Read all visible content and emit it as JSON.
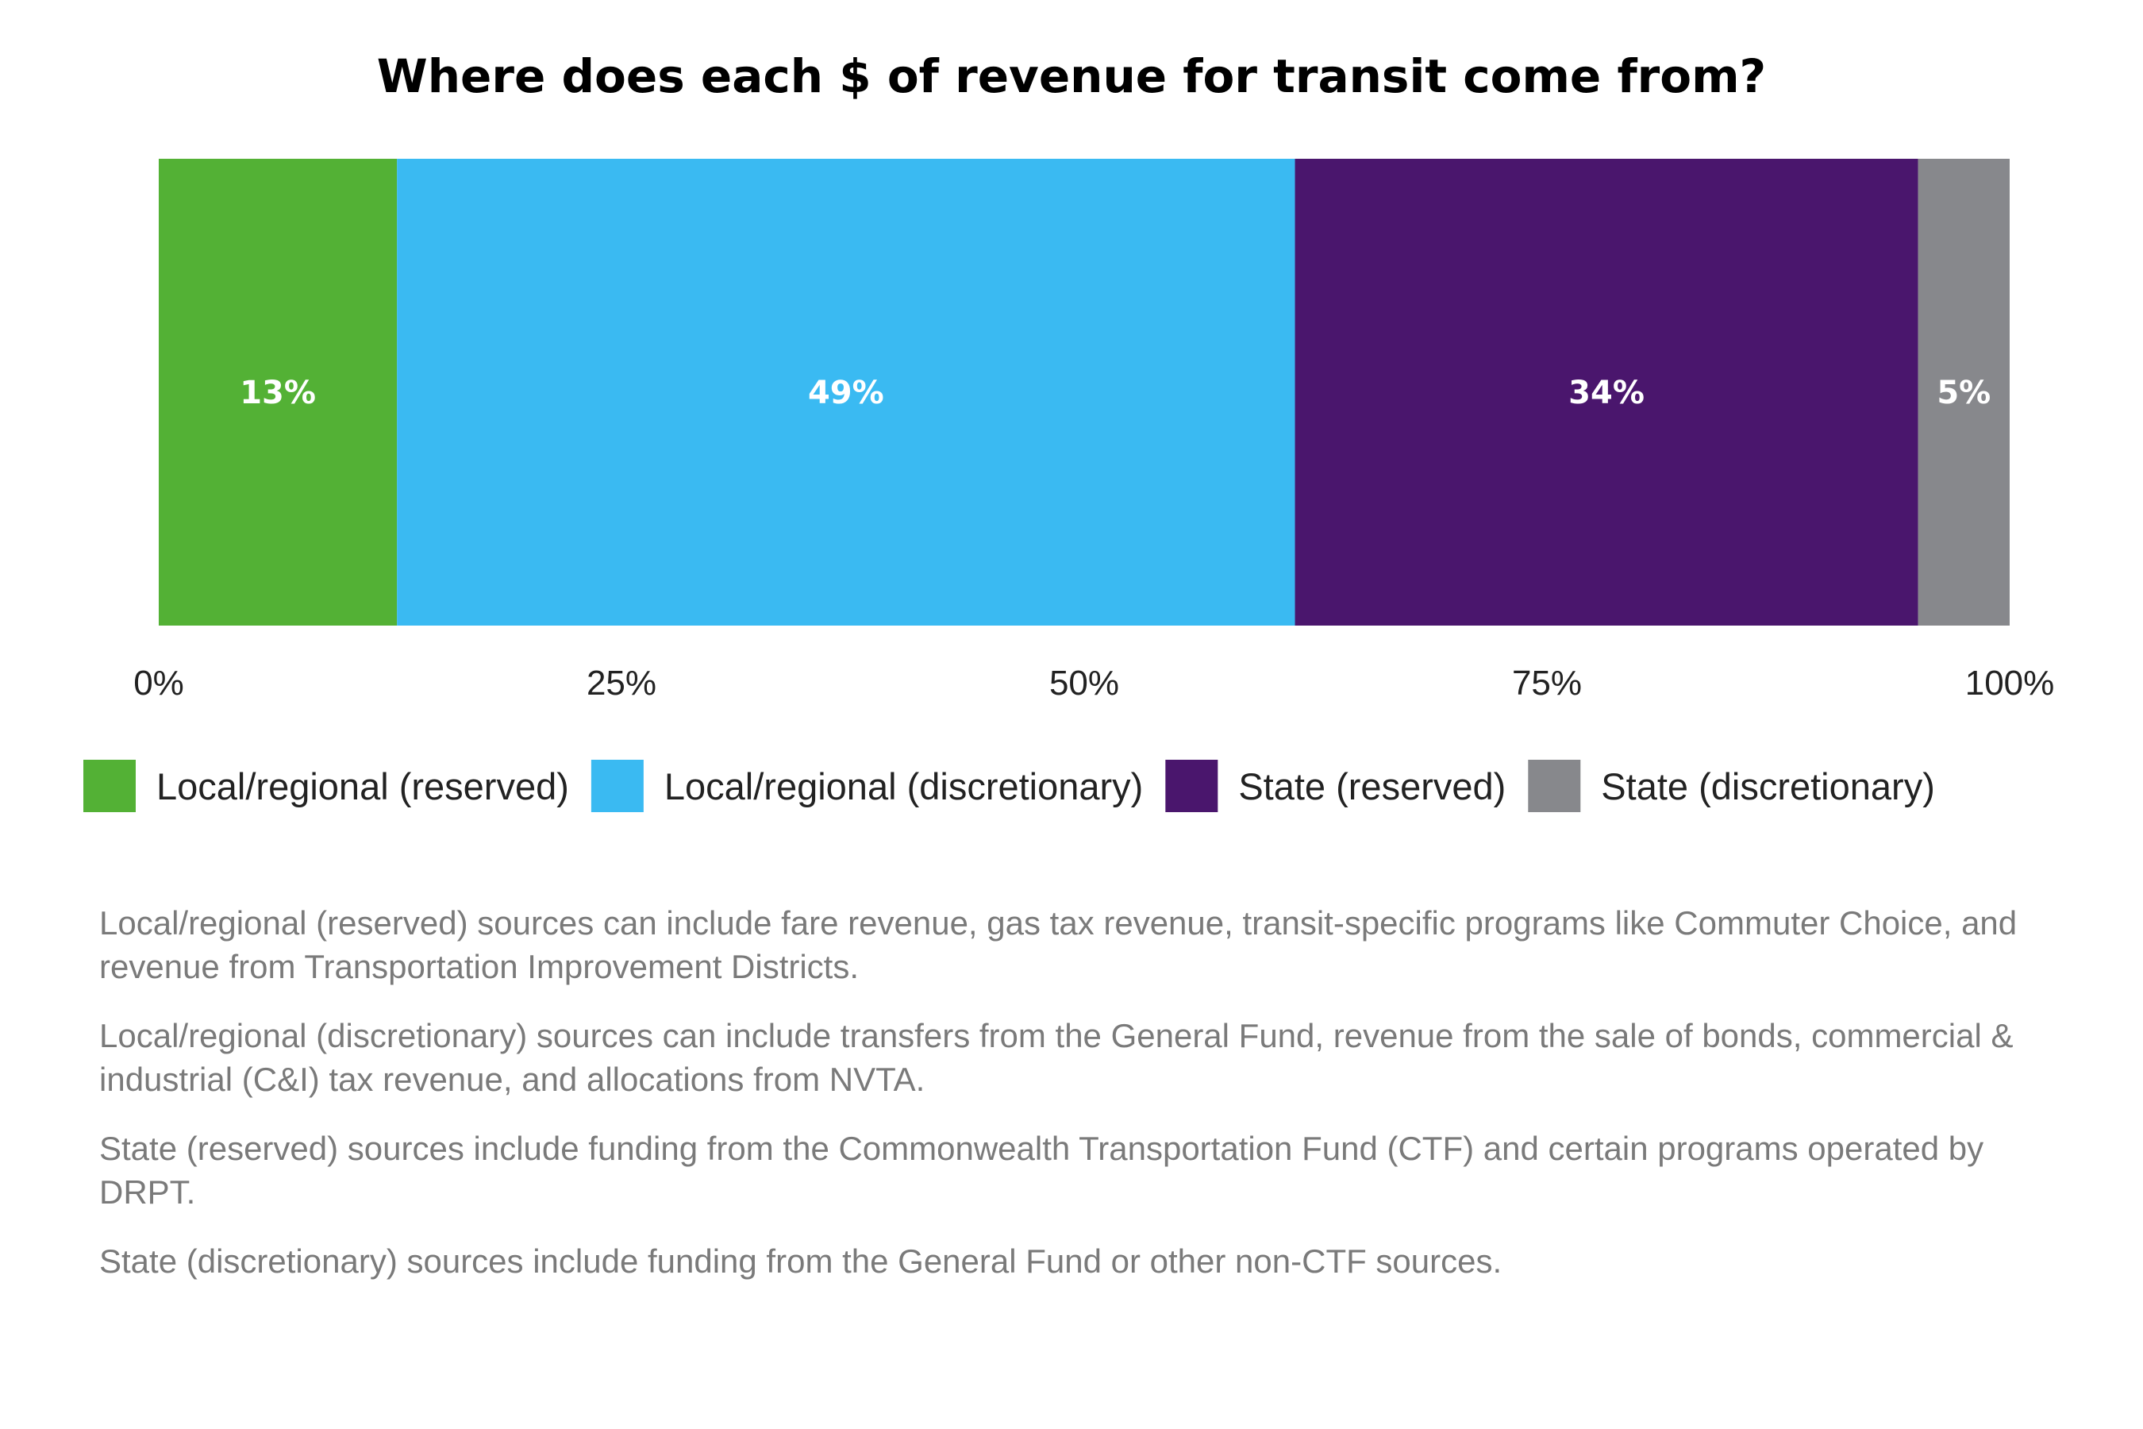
{
  "chart_data": {
    "type": "bar",
    "orientation": "horizontal",
    "stacked": true,
    "title": "Where does each $ of revenue for transit come from?",
    "xlim": [
      0,
      100
    ],
    "x_ticks": [
      "0%",
      "25%",
      "50%",
      "75%",
      "100%"
    ],
    "legend_position": "bottom",
    "grid": false,
    "series": [
      {
        "name": "Local/regional (reserved)",
        "value": 13,
        "label": "13%",
        "color": "#53B135"
      },
      {
        "name": "Local/regional (discretionary)",
        "value": 49,
        "label": "49%",
        "color": "#3ABAF2"
      },
      {
        "name": "State (reserved)",
        "value": 34,
        "label": "34%",
        "color": "#4A166D"
      },
      {
        "name": "State (discretionary)",
        "value": 5,
        "label": "5%",
        "color": "#87888C"
      }
    ]
  },
  "notes": [
    "Local/regional (reserved) sources can include fare revenue, gas tax revenue, transit-specific programs like Commuter Choice, and revenue from Transportation Improvement Districts.",
    "Local/regional (discretionary) sources can include transfers from the General Fund, revenue from the sale of bonds, commercial & industrial (C&I) tax revenue, and allocations from NVTA.",
    "State (reserved) sources include funding from the Commonwealth Transportation Fund (CTF) and certain programs operated by DRPT.",
    "State (discretionary) sources include funding from the General Fund or other non-CTF sources."
  ]
}
